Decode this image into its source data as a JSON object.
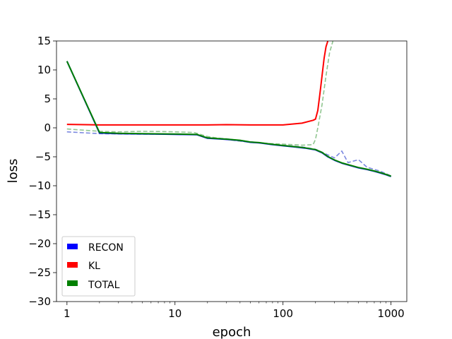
{
  "chart_data": {
    "type": "line",
    "title": "",
    "xlabel": "epoch",
    "ylabel": "loss",
    "xscale": "log",
    "xlim": [
      0.8,
      1400
    ],
    "ylim": [
      -30,
      15
    ],
    "grid": false,
    "legend_placement": "lower-left",
    "x_ticks": [
      {
        "value": 1,
        "label": "1"
      },
      {
        "value": 10,
        "label": "10"
      },
      {
        "value": 100,
        "label": "100"
      },
      {
        "value": 1000,
        "label": "1000"
      }
    ],
    "y_ticks": [
      {
        "value": 15,
        "label": "15"
      },
      {
        "value": 10,
        "label": "10"
      },
      {
        "value": 5,
        "label": "5"
      },
      {
        "value": 0,
        "label": "0"
      },
      {
        "value": -5,
        "label": "−5"
      },
      {
        "value": -10,
        "label": "−10"
      },
      {
        "value": -15,
        "label": "−15"
      },
      {
        "value": -20,
        "label": "−20"
      },
      {
        "value": -25,
        "label": "−25"
      },
      {
        "value": -30,
        "label": "−30"
      }
    ],
    "series": [
      {
        "name": "RECON",
        "color": "#0000ff",
        "style": "solid",
        "x": [
          1,
          2,
          3,
          5,
          8,
          12,
          16,
          20,
          25,
          30,
          40,
          50,
          60,
          80,
          100,
          130,
          160,
          200,
          230,
          260,
          300,
          350,
          400,
          500,
          600,
          700,
          800,
          900,
          1000
        ],
        "y": [
          11.5,
          -0.9,
          -1.0,
          -1.05,
          -1.1,
          -1.15,
          -1.2,
          -1.8,
          -1.9,
          -2.0,
          -2.2,
          -2.5,
          -2.6,
          -2.9,
          -3.1,
          -3.3,
          -3.5,
          -3.8,
          -4.3,
          -5.0,
          -5.6,
          -6.1,
          -6.4,
          -6.9,
          -7.2,
          -7.5,
          -7.8,
          -8.1,
          -8.4
        ]
      },
      {
        "name": "KL",
        "color": "#ff0000",
        "style": "solid",
        "x": [
          1,
          2,
          3,
          5,
          10,
          20,
          30,
          50,
          100,
          150,
          190,
          200,
          210,
          220,
          230,
          240,
          250,
          260
        ],
        "y": [
          0.6,
          0.5,
          0.5,
          0.5,
          0.5,
          0.5,
          0.55,
          0.5,
          0.5,
          0.8,
          1.3,
          1.5,
          3.0,
          6.0,
          9.0,
          12.0,
          14.0,
          15.0
        ]
      },
      {
        "name": "TOTAL",
        "color": "#008000",
        "style": "solid",
        "x": [
          1,
          2,
          3,
          5,
          8,
          12,
          16,
          20,
          25,
          30,
          40,
          50,
          60,
          80,
          100,
          130,
          160,
          200,
          230,
          260,
          300,
          350,
          400,
          500,
          600,
          700,
          800,
          900,
          1000
        ],
        "y": [
          11.5,
          -0.8,
          -0.95,
          -1.0,
          -1.05,
          -1.1,
          -1.15,
          -1.75,
          -1.85,
          -1.95,
          -2.15,
          -2.45,
          -2.55,
          -2.85,
          -3.05,
          -3.25,
          -3.45,
          -3.75,
          -4.25,
          -4.95,
          -5.55,
          -6.05,
          -6.35,
          -6.85,
          -7.15,
          -7.45,
          -7.75,
          -8.05,
          -8.35
        ]
      },
      {
        "name": "",
        "color": "#5b6bd8",
        "style": "dashed",
        "x": [
          1,
          2,
          3,
          5,
          10,
          16,
          20,
          30,
          40,
          50,
          70,
          100,
          150,
          200,
          300,
          350,
          400,
          500,
          600,
          800,
          1000
        ],
        "y": [
          -0.7,
          -1.0,
          -1.05,
          -1.1,
          -1.1,
          -1.2,
          -1.7,
          -1.9,
          -2.2,
          -2.4,
          -2.7,
          -3.0,
          -3.3,
          -3.7,
          -5.2,
          -4.0,
          -6.0,
          -5.5,
          -6.8,
          -7.5,
          -8.3
        ]
      },
      {
        "name": "",
        "color": "#74b874",
        "style": "dashed",
        "x": [
          1,
          2,
          3,
          5,
          8,
          10,
          15,
          20,
          30,
          40,
          50,
          70,
          100,
          150,
          190,
          200,
          210,
          230,
          250,
          270,
          290
        ],
        "y": [
          -0.2,
          -0.6,
          -0.7,
          -0.6,
          -0.65,
          -0.7,
          -0.8,
          -1.5,
          -2.0,
          -2.3,
          -2.5,
          -2.7,
          -2.8,
          -3.0,
          -2.9,
          -2.0,
          0.0,
          4.0,
          9.0,
          13.0,
          15.0
        ]
      }
    ]
  }
}
